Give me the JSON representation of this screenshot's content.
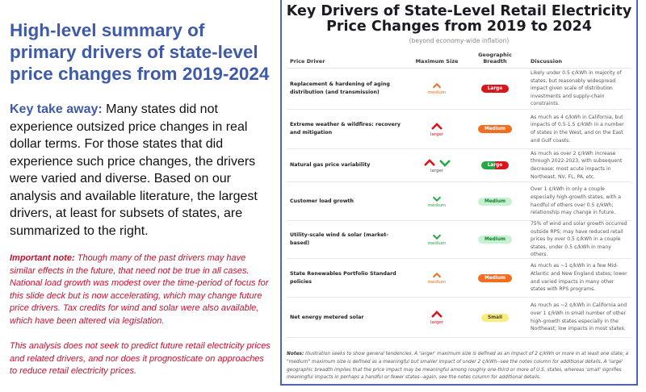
{
  "left": {
    "headline": "High-level summary of primary drivers of state-level price changes from 2019-2024",
    "takeaway_label": "Key take away:",
    "takeaway_text": " Many states did not experience outsized price changes in real dollar terms. For those states that did experience such price changes, the drivers were varied and diverse. Based on our analysis and available literature, the largest drivers, at least for subsets of states, are summarized to the right.",
    "note_label": "Important note:",
    "note_text": " Though many of the past drivers may have similar effects in the future, that need not be true in all cases. National load growth was modest over the time-period of focus for this slide deck but is now accelerating, which may change future price drivers. Tax credits for wind and solar were also available, which have been altered via legislation.",
    "disclaimer": "This analysis does not seek to predict future retail electricity prices and related drivers, and nor does it prognosticate on approaches to reduce retail electricity prices."
  },
  "panel": {
    "title": "Key Drivers of State-Level Retail Electricity Price Changes from 2019 to 2024",
    "subtitle": "(beyond economy-wide inflation)",
    "headers": {
      "driver": "Price Driver",
      "size": "Maximum Size",
      "breadth": "Geographic Breadth",
      "discussion": "Discussion"
    },
    "rows": [
      {
        "driver": "Replacement & hardening of aging distribution (and transmission)",
        "size": "medium",
        "size_icon": "chevron-up-orange",
        "breadth": "Large",
        "discussion": "Likely under 0.5 ¢/kWh in majority of states, but reasonably widespread impact given scale of distribution investments and supply-chain constraints."
      },
      {
        "driver": "Extreme weather & wildfires: recovery and mitigation",
        "size": "larger",
        "size_icon": "chevron-up-red",
        "breadth": "Medium",
        "discussion": "As much as 4 ¢/kWh in California, but impacts of 0.5-1.5 ¢/kWh in a number of states in the West, and on the East and Gulf coasts."
      },
      {
        "driver": "Natural gas price variability",
        "size": "larger",
        "size_icon": "chevron-up-red-and-down-green",
        "breadth": "Large",
        "discussion": "As much as over 2 ¢/kWh increase through 2022-2023, with subsequent decrease; most acute impacts in Northeast, NV, FL, PA, etc."
      },
      {
        "driver": "Customer load growth",
        "size": "medium",
        "size_icon": "chevron-down-green",
        "breadth": "Medium",
        "discussion": "Over 1 ¢/kWh in only a couple especially high-growth states, with a handful of others over 0.5 ¢/kWh; relationship may change in future."
      },
      {
        "driver": "Utility-scale wind & solar (market-based)",
        "size": "medium",
        "size_icon": "chevron-down-green",
        "breadth": "Medium",
        "discussion": "75% of wind and solar growth occurred outside RPS; may have reduced retail prices by over 0.5 ¢/kWh in a couple states, under 0.5 ¢/kWh in many others."
      },
      {
        "driver": "State Renewables Portfolio Standard policies",
        "size": "medium",
        "size_icon": "chevron-up-orange",
        "breadth": "Medium",
        "discussion": "As much as ~1 ¢/kWh in a few Mid-Atlantic and New England states; lower and varied impacts in many other states with RPS programs."
      },
      {
        "driver": "Net energy metered solar",
        "size": "larger",
        "size_icon": "chevron-up-red",
        "breadth": "Small",
        "discussion": "As much as ~2 ¢/kWh in California and over 1 ¢/kWh in small number of other high-growth states especially in the Northeast; low impacts in most states."
      }
    ],
    "notes_label": "Notes:",
    "notes_text": " Illustration seeks to show general tendencies. A 'larger' maximum size is defined as an impact of 2 ¢/kWh or more in at least one state; a \"medium\" maximum size is defined as a meaningful but smaller impact of under 2 ¢/kWh--see the notes column for additional details. A 'large' geographic breadth implies that the price impact may be meaningful among roughly one-third or more of U.S. states, whereas 'small' signifies meaningful impacts in perhaps a handful or fewer states--again, see the notes column for additional details."
  },
  "colors": {
    "accent_blue": "#3f5ba8",
    "red": "#d9161c",
    "orange": "#f26d1f",
    "green": "#27a844",
    "light_green": "#c7f2d2",
    "yellow": "#f8ec7a"
  }
}
